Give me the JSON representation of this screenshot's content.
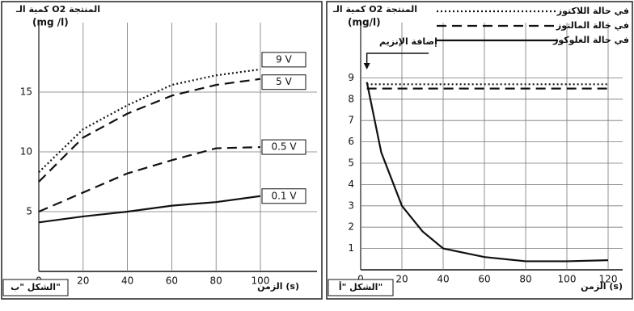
{
  "chart_data": [
    {
      "type": "line",
      "title": "كمية الـ O2 المنتجة",
      "y_unit": "(mg /l)",
      "x_label": "الزمن (s)",
      "figure_label": "الشكل \"ب\"",
      "x": [
        0,
        20,
        40,
        60,
        80,
        100
      ],
      "xlim": [
        0,
        100
      ],
      "xticks": [
        0,
        20,
        40,
        60,
        80,
        100
      ],
      "ylim": [
        0,
        20
      ],
      "yticks": [
        5,
        10,
        15
      ],
      "grid": true,
      "legend": "line-end",
      "series": [
        {
          "name": "9 V",
          "color": "#111111",
          "dash": "dotted",
          "values": [
            8.3,
            11.9,
            13.9,
            15.6,
            16.4,
            16.9
          ]
        },
        {
          "name": "5 V",
          "color": "#111111",
          "dash": "dashed",
          "values": [
            7.5,
            11.2,
            13.2,
            14.7,
            15.6,
            16.1
          ]
        },
        {
          "name": "0.5 V",
          "color": "#111111",
          "dash": "dashed",
          "values": [
            5,
            6.6,
            8.2,
            9.3,
            10.3,
            10.4
          ]
        },
        {
          "name": "0.1 V",
          "color": "#111111",
          "dash": "solid",
          "values": [
            4.1,
            4.6,
            5,
            5.5,
            5.8,
            6.3
          ]
        }
      ]
    },
    {
      "type": "line",
      "title": "كمية الـ O2 المنتجة",
      "y_unit": "(mg/l)",
      "x_label": "الزمن (s)",
      "figure_label": "الشكل \"أ\"",
      "annotation": "إضافة الإنزيم",
      "x": [
        3,
        10,
        20,
        30,
        40,
        60,
        80,
        100,
        120
      ],
      "xlim": [
        0,
        120
      ],
      "xticks": [
        0,
        20,
        40,
        60,
        80,
        100,
        120
      ],
      "ylim": [
        0,
        10
      ],
      "yticks": [
        1,
        2,
        3,
        4,
        5,
        6,
        7,
        8,
        9
      ],
      "grid": true,
      "legend": "top-right",
      "series": [
        {
          "name": "في حالة اللاكتوز",
          "color": "#111111",
          "dash": "dotted",
          "values": [
            8.7,
            8.7,
            8.7,
            8.7,
            8.7,
            8.7,
            8.7,
            8.7,
            8.7
          ]
        },
        {
          "name": "في حالة المالتوز",
          "color": "#111111",
          "dash": "dashed",
          "values": [
            8.5,
            8.5,
            8.5,
            8.5,
            8.5,
            8.5,
            8.5,
            8.5,
            8.5
          ]
        },
        {
          "name": "في حالة الغلوكوز",
          "color": "#111111",
          "dash": "solid",
          "values": [
            8.8,
            5.5,
            3.0,
            1.8,
            1.0,
            0.6,
            0.4,
            0.4,
            0.45
          ]
        }
      ]
    }
  ]
}
